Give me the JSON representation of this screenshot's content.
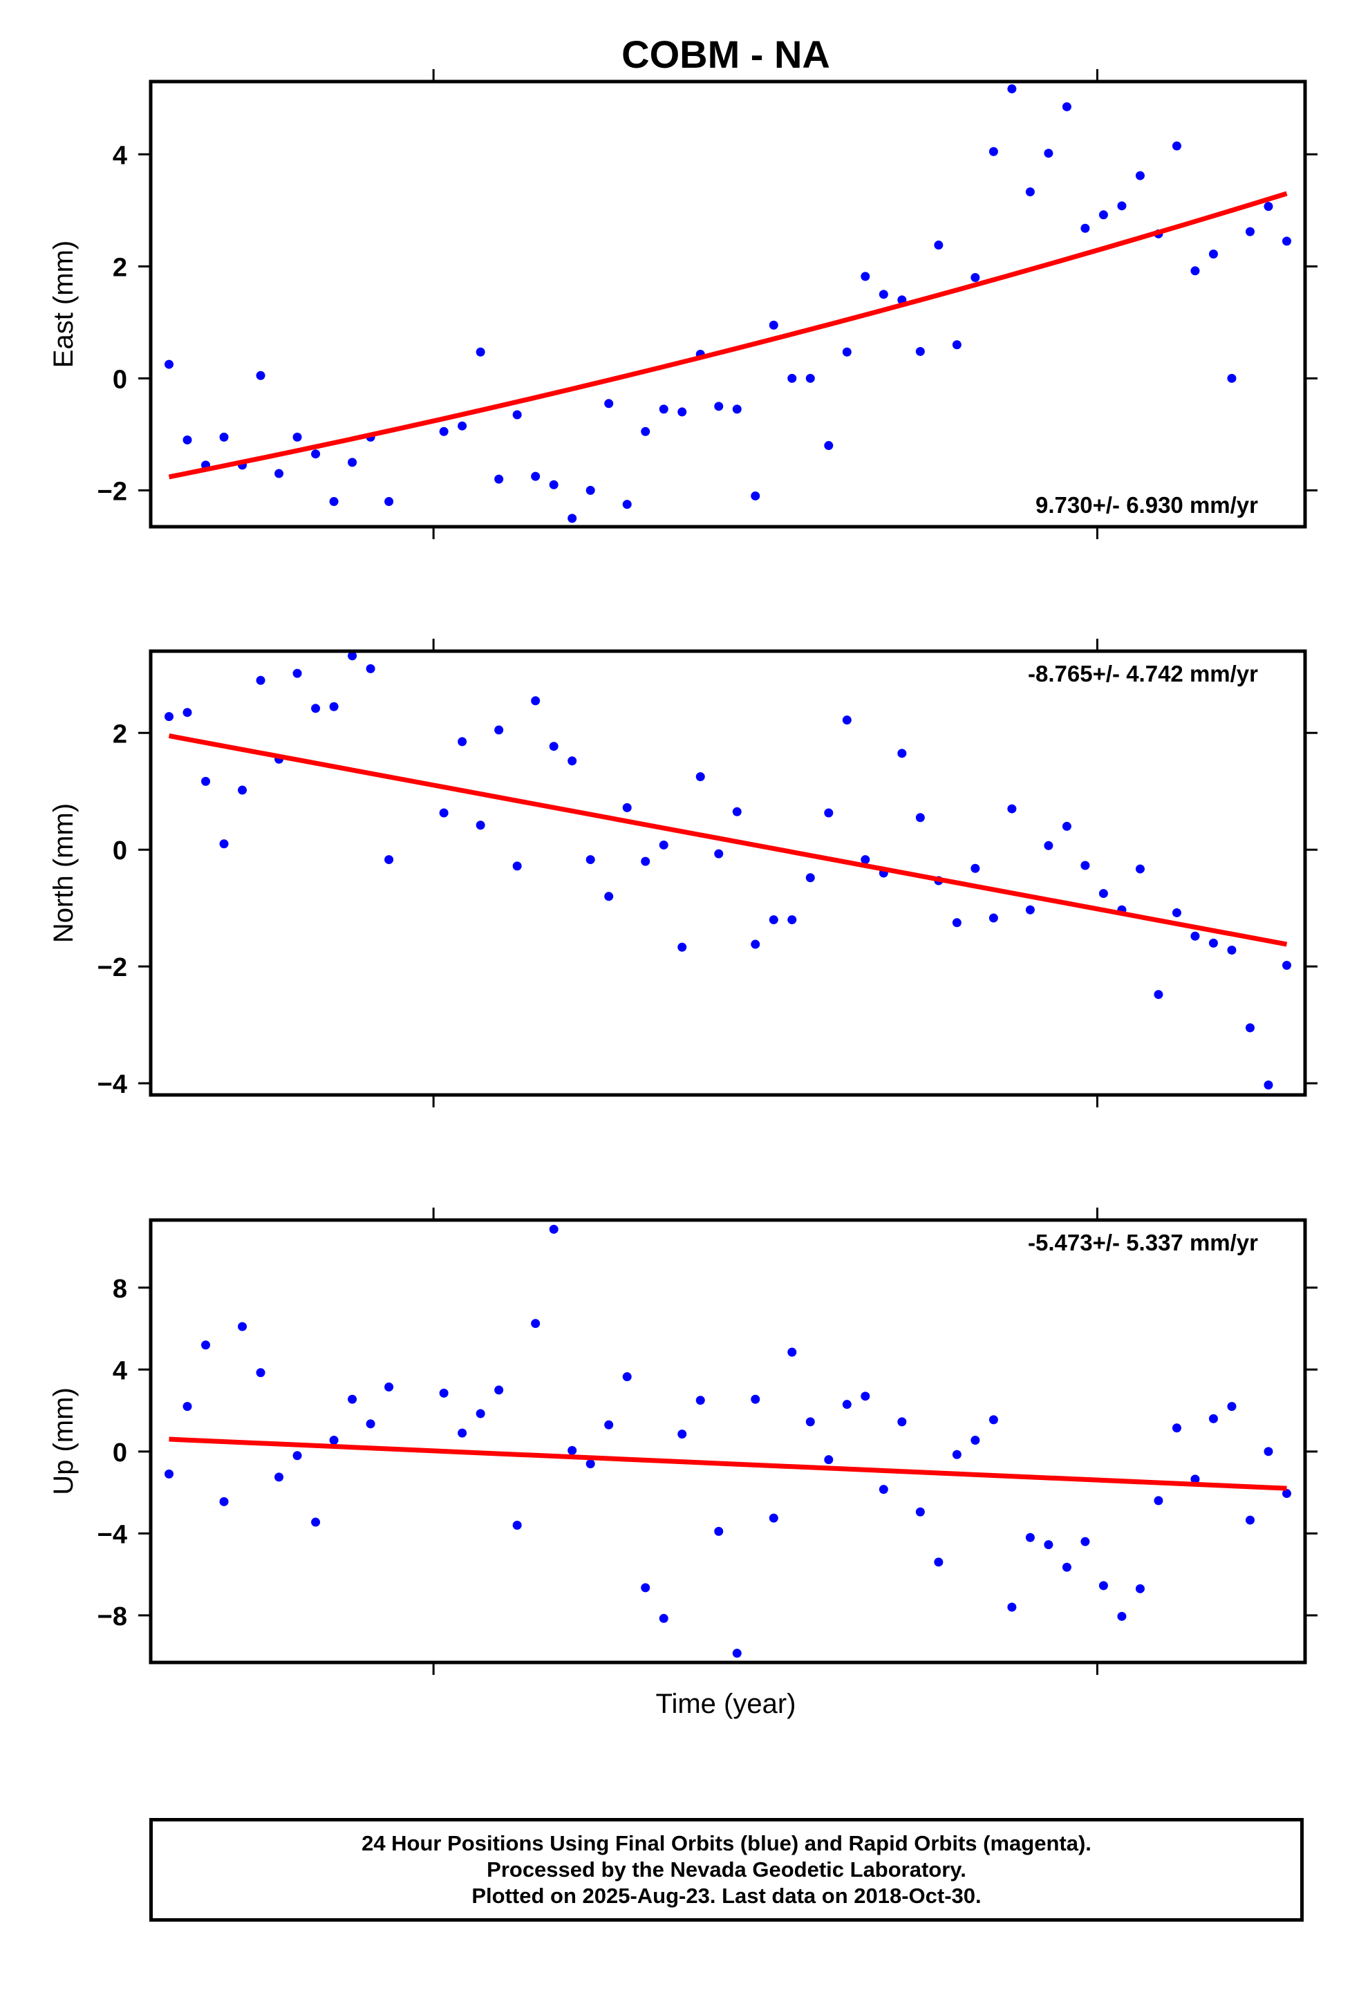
{
  "chart_data": {
    "title": "COBM - NA",
    "xlabel": "Time (year)",
    "type": "scatter",
    "colors": {
      "points": "#0000ff",
      "fit": "#ff0000",
      "frame": "#000000"
    },
    "panels": [
      {
        "key": "east",
        "ylabel": "East (mm)",
        "rate_label": "9.730+/- 6.930 mm/yr",
        "rate_position": "bottom-right",
        "ylim": [
          -2.65,
          5.3
        ],
        "yticks": [
          -2,
          0,
          2,
          4
        ],
        "ytick_labels": [
          "−2",
          "0",
          "2",
          "4"
        ],
        "fit_start": -1.76,
        "fit_end": 3.3,
        "points": [
          [
            1,
            0.25
          ],
          [
            2,
            -1.1
          ],
          [
            3,
            -1.55
          ],
          [
            4,
            -1.05
          ],
          [
            5,
            -1.55
          ],
          [
            6,
            0.05
          ],
          [
            7,
            -1.7
          ],
          [
            8,
            -1.05
          ],
          [
            9,
            -1.35
          ],
          [
            10,
            -2.2
          ],
          [
            11,
            -1.5
          ],
          [
            12,
            -1.05
          ],
          [
            13,
            -2.2
          ],
          [
            16,
            -0.95
          ],
          [
            17,
            -0.85
          ],
          [
            18,
            0.47
          ],
          [
            19,
            -1.8
          ],
          [
            20,
            -0.65
          ],
          [
            21,
            -1.75
          ],
          [
            22,
            -1.9
          ],
          [
            23,
            -2.5
          ],
          [
            24,
            -2.0
          ],
          [
            25,
            -0.45
          ],
          [
            26,
            -2.25
          ],
          [
            27,
            -0.95
          ],
          [
            28,
            -0.55
          ],
          [
            29,
            -0.6
          ],
          [
            30,
            0.43
          ],
          [
            31,
            -0.5
          ],
          [
            32,
            -0.55
          ],
          [
            33,
            -2.1
          ],
          [
            34,
            0.95
          ],
          [
            35,
            0.0
          ],
          [
            36,
            0.0
          ],
          [
            37,
            -1.2
          ],
          [
            38,
            0.47
          ],
          [
            39,
            1.82
          ],
          [
            40,
            1.5
          ],
          [
            41,
            1.4
          ],
          [
            42,
            0.48
          ],
          [
            43,
            2.38
          ],
          [
            44,
            0.6
          ],
          [
            45,
            1.8
          ],
          [
            46,
            4.05
          ],
          [
            47,
            5.17
          ],
          [
            48,
            3.33
          ],
          [
            49,
            4.02
          ],
          [
            50,
            4.85
          ],
          [
            51,
            2.68
          ],
          [
            52,
            2.92
          ],
          [
            53,
            3.08
          ],
          [
            54,
            3.62
          ],
          [
            55,
            2.58
          ],
          [
            56,
            4.15
          ],
          [
            57,
            1.92
          ],
          [
            58,
            2.22
          ],
          [
            59,
            0.0
          ],
          [
            60,
            2.62
          ],
          [
            61,
            3.07
          ],
          [
            62,
            2.45
          ]
        ]
      },
      {
        "key": "north",
        "ylabel": "North (mm)",
        "rate_label": "-8.765+/- 4.742 mm/yr",
        "rate_position": "top-right",
        "ylim": [
          -4.2,
          3.4
        ],
        "yticks": [
          -4,
          -2,
          0,
          2
        ],
        "ytick_labels": [
          "−4",
          "−2",
          "0",
          "2"
        ],
        "fit_start": 1.95,
        "fit_end": -1.62,
        "points": [
          [
            1,
            2.28
          ],
          [
            2,
            2.35
          ],
          [
            3,
            1.17
          ],
          [
            4,
            0.1
          ],
          [
            5,
            1.02
          ],
          [
            6,
            2.9
          ],
          [
            7,
            1.55
          ],
          [
            8,
            3.02
          ],
          [
            9,
            2.42
          ],
          [
            10,
            2.45
          ],
          [
            11,
            3.32
          ],
          [
            12,
            3.1
          ],
          [
            13,
            -0.17
          ],
          [
            16,
            0.63
          ],
          [
            17,
            1.85
          ],
          [
            18,
            0.42
          ],
          [
            19,
            2.05
          ],
          [
            20,
            -0.28
          ],
          [
            21,
            2.55
          ],
          [
            22,
            1.77
          ],
          [
            23,
            1.52
          ],
          [
            24,
            -0.17
          ],
          [
            25,
            -0.8
          ],
          [
            26,
            0.72
          ],
          [
            27,
            -0.2
          ],
          [
            28,
            0.08
          ],
          [
            29,
            -1.67
          ],
          [
            30,
            1.25
          ],
          [
            31,
            -0.07
          ],
          [
            32,
            0.65
          ],
          [
            33,
            -1.62
          ],
          [
            34,
            -1.2
          ],
          [
            35,
            -1.2
          ],
          [
            36,
            -0.48
          ],
          [
            37,
            0.63
          ],
          [
            38,
            2.22
          ],
          [
            39,
            -0.17
          ],
          [
            40,
            -0.4
          ],
          [
            41,
            1.65
          ],
          [
            42,
            0.55
          ],
          [
            43,
            -0.53
          ],
          [
            44,
            -1.25
          ],
          [
            45,
            -0.32
          ],
          [
            46,
            -1.17
          ],
          [
            47,
            0.7
          ],
          [
            48,
            -1.03
          ],
          [
            49,
            0.07
          ],
          [
            50,
            0.4
          ],
          [
            51,
            -0.27
          ],
          [
            52,
            -0.75
          ],
          [
            53,
            -1.03
          ],
          [
            54,
            -0.33
          ],
          [
            55,
            -2.48
          ],
          [
            56,
            -1.08
          ],
          [
            57,
            -1.48
          ],
          [
            58,
            -1.6
          ],
          [
            59,
            -1.72
          ],
          [
            60,
            -3.05
          ],
          [
            61,
            -4.03
          ],
          [
            62,
            -1.98
          ]
        ]
      },
      {
        "key": "up",
        "ylabel": "Up (mm)",
        "rate_label": "-5.473+/- 5.337 mm/yr",
        "rate_position": "top-right",
        "ylim": [
          -10.3,
          11.3
        ],
        "yticks": [
          -8,
          -4,
          0,
          4,
          8
        ],
        "ytick_labels": [
          "−8",
          "−4",
          "0",
          "4",
          "8"
        ],
        "fit_start": 0.6,
        "fit_end": -1.8,
        "points": [
          [
            1,
            -1.1
          ],
          [
            2,
            2.2
          ],
          [
            3,
            5.2
          ],
          [
            4,
            -2.45
          ],
          [
            5,
            6.1
          ],
          [
            6,
            3.85
          ],
          [
            7,
            -1.25
          ],
          [
            8,
            -0.2
          ],
          [
            9,
            -3.45
          ],
          [
            10,
            0.55
          ],
          [
            11,
            2.55
          ],
          [
            12,
            1.35
          ],
          [
            13,
            3.15
          ],
          [
            16,
            2.85
          ],
          [
            17,
            0.9
          ],
          [
            18,
            1.85
          ],
          [
            19,
            3.0
          ],
          [
            20,
            -3.6
          ],
          [
            21,
            6.25
          ],
          [
            22,
            10.85
          ],
          [
            23,
            0.05
          ],
          [
            24,
            -0.6
          ],
          [
            25,
            1.3
          ],
          [
            26,
            3.65
          ],
          [
            27,
            -6.65
          ],
          [
            28,
            -8.15
          ],
          [
            29,
            0.85
          ],
          [
            30,
            2.5
          ],
          [
            31,
            -3.9
          ],
          [
            32,
            -9.85
          ],
          [
            33,
            2.55
          ],
          [
            34,
            -3.25
          ],
          [
            35,
            4.85
          ],
          [
            36,
            1.45
          ],
          [
            37,
            -0.4
          ],
          [
            38,
            2.3
          ],
          [
            39,
            2.7
          ],
          [
            40,
            -1.85
          ],
          [
            41,
            1.45
          ],
          [
            42,
            -2.95
          ],
          [
            43,
            -5.4
          ],
          [
            44,
            -0.15
          ],
          [
            45,
            0.55
          ],
          [
            46,
            1.55
          ],
          [
            47,
            -7.6
          ],
          [
            48,
            -4.2
          ],
          [
            49,
            -4.55
          ],
          [
            50,
            -5.65
          ],
          [
            51,
            -4.4
          ],
          [
            52,
            -6.55
          ],
          [
            53,
            -8.05
          ],
          [
            54,
            -6.7
          ],
          [
            55,
            -2.4
          ],
          [
            56,
            1.15
          ],
          [
            57,
            -1.35
          ],
          [
            58,
            1.6
          ],
          [
            59,
            2.2
          ],
          [
            60,
            -3.35
          ],
          [
            61,
            0.0
          ],
          [
            62,
            -2.05
          ]
        ]
      }
    ],
    "xlim": [
      0,
      63
    ],
    "x_tick_fractions": [
      0.245,
      0.82
    ],
    "footer_lines": [
      "24 Hour Positions Using Final Orbits (blue) and Rapid Orbits (magenta).",
      "Processed by the Nevada Geodetic Laboratory.",
      "Plotted on 2025-Aug-23. Last data on 2018-Oct-30."
    ]
  }
}
